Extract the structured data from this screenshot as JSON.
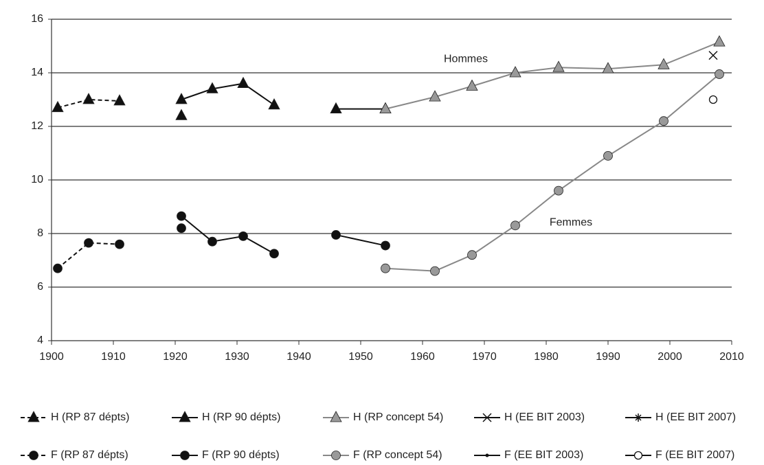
{
  "chart_data": {
    "type": "line",
    "annotations": [
      {
        "text": "Hommes",
        "x": 1967,
        "y": 14.5
      },
      {
        "text": "Femmes",
        "x": 1984,
        "y": 8.4
      }
    ],
    "xlim": [
      1900,
      2010
    ],
    "xticks": [
      1900,
      1910,
      1920,
      1930,
      1940,
      1950,
      1960,
      1970,
      1980,
      1990,
      2000,
      2010
    ],
    "ylim": [
      4,
      16
    ],
    "yticks": [
      4,
      6,
      8,
      10,
      12,
      14,
      16
    ],
    "grid": true,
    "series": [
      {
        "name": "H (RP 87 dépts)",
        "color": "#111111",
        "line": "dashed",
        "marker": "triangle",
        "x": [
          1901,
          1906,
          1911,
          1916,
          1921
        ],
        "values": [
          12.7,
          13.0,
          12.95,
          null,
          12.4
        ]
      },
      {
        "name": "H (RP 90 dépts)",
        "color": "#111111",
        "line": "solid",
        "marker": "triangle",
        "x": [
          1921,
          1926,
          1931,
          1936,
          1941,
          1946,
          1954
        ],
        "values": [
          13.0,
          13.4,
          13.6,
          12.8,
          null,
          12.65,
          12.65
        ]
      },
      {
        "name": "H (RP concept 54)",
        "color": "#999999",
        "line": "solid",
        "marker": "triangle",
        "x": [
          1954,
          1962,
          1968,
          1975,
          1982,
          1990,
          1999,
          2008
        ],
        "values": [
          12.65,
          13.1,
          13.5,
          14.0,
          14.2,
          14.15,
          14.3,
          15.15
        ]
      },
      {
        "name": "H (EE BIT 2003)",
        "color": "#111111",
        "line": "solid",
        "marker": "cross",
        "x": [
          2007
        ],
        "values": [
          14.65
        ]
      },
      {
        "name": "H (EE BIT 2007)",
        "color": "#111111",
        "line": "solid",
        "marker": "star",
        "x": [],
        "values": []
      },
      {
        "name": "F (RP 87 dépts)",
        "color": "#111111",
        "line": "dashed",
        "marker": "circle",
        "x": [
          1901,
          1906,
          1911,
          1916,
          1921
        ],
        "values": [
          6.7,
          7.65,
          7.6,
          null,
          8.2
        ]
      },
      {
        "name": "F (RP 90 dépts)",
        "color": "#111111",
        "line": "solid",
        "marker": "circle",
        "x": [
          1921,
          1926,
          1931,
          1936,
          1941,
          1946,
          1954
        ],
        "values": [
          8.65,
          7.7,
          7.9,
          7.25,
          null,
          7.95,
          7.55
        ]
      },
      {
        "name": "F (RP concept 54)",
        "color": "#999999",
        "line": "solid",
        "marker": "circle",
        "x": [
          1954,
          1962,
          1968,
          1975,
          1982,
          1990,
          1999,
          2008
        ],
        "values": [
          6.7,
          6.6,
          7.2,
          8.3,
          9.6,
          10.9,
          12.2,
          13.95
        ]
      },
      {
        "name": "F (EE BIT 2003)",
        "color": "#111111",
        "line": "solid",
        "marker": "plus",
        "x": [],
        "values": []
      },
      {
        "name": "F (EE BIT 2007)",
        "color": "#111111",
        "line": "solid",
        "marker": "open-circle",
        "x": [
          2007
        ],
        "values": [
          13.0
        ]
      }
    ]
  }
}
